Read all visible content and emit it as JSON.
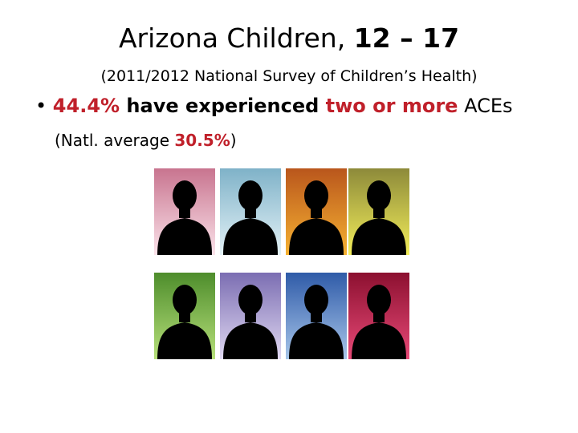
{
  "title": {
    "plain": "Arizona Children, ",
    "bold": "12 – 17"
  },
  "subtitle": "(2011/2012 National Survey of Children’s Health)",
  "bullet": {
    "percent": "44.4%",
    "middle": " have experienced ",
    "highlight": "two or more",
    "end": " ACEs"
  },
  "note": {
    "start": "(Natl. average ",
    "percent": "30.5%",
    "end": ")"
  }
}
